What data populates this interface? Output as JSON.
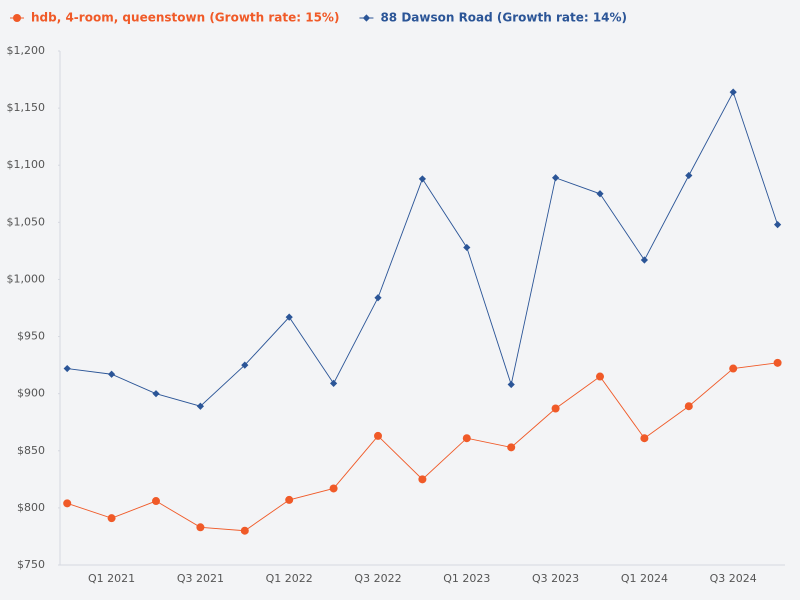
{
  "chart_data": {
    "type": "line",
    "categories": [
      null,
      "Q1 2021",
      null,
      "Q3 2021",
      null,
      "Q1 2022",
      null,
      "Q3 2022",
      null,
      "Q1 2023",
      null,
      "Q3 2023",
      null,
      "Q1 2024",
      null,
      "Q3 2024",
      null
    ],
    "series": [
      {
        "name": "hdb, 4-room, queenstown (Growth rate: 15%)",
        "color": "#f05a28",
        "marker": "circle",
        "values": [
          804,
          791,
          806,
          783,
          780,
          807,
          817,
          863,
          825,
          861,
          853,
          887,
          915,
          861,
          889,
          922,
          927
        ]
      },
      {
        "name": "88 Dawson Road (Growth rate: 14%)",
        "color": "#2b5597",
        "marker": "diamond",
        "values": [
          922,
          917,
          900,
          889,
          925,
          967,
          909,
          984,
          1088,
          1028,
          908,
          1089,
          1075,
          1017,
          1091,
          1164,
          1048
        ]
      }
    ],
    "ylim": [
      750,
      1200
    ],
    "yticks": [
      {
        "value": 750,
        "label": "$750"
      },
      {
        "value": 800,
        "label": "$800"
      },
      {
        "value": 850,
        "label": "$850"
      },
      {
        "value": 900,
        "label": "$900"
      },
      {
        "value": 950,
        "label": "$950"
      },
      {
        "value": 1000,
        "label": "$1,000"
      },
      {
        "value": 1050,
        "label": "$1,050"
      },
      {
        "value": 1100,
        "label": "$1,100"
      },
      {
        "value": 1150,
        "label": "$1,150"
      },
      {
        "value": 1200,
        "label": "$1,200"
      }
    ],
    "grid": false,
    "legend": "top-left"
  }
}
